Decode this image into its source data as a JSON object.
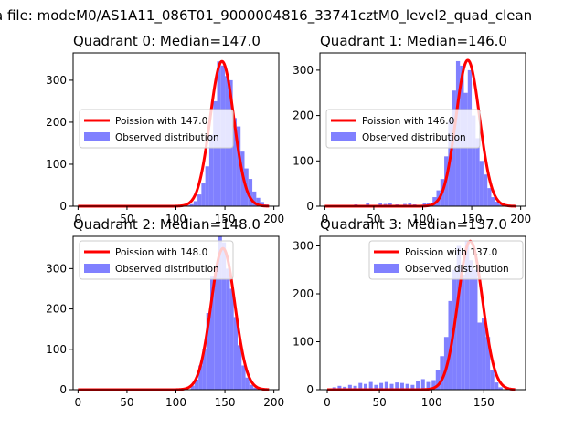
{
  "figure": {
    "suptitle": "a file: modeM0/AS1A11_086T01_9000004816_33741cztM0_level2_quad_clean"
  },
  "colors": {
    "hist": "#8080ff",
    "poisson": "#ff0000",
    "axes": "#000000"
  },
  "chart_data": [
    {
      "type": "bar",
      "title": "Quadrant 0: Median=147.0",
      "legend": [
        "Poission with 147.0",
        "Observed distribution"
      ],
      "legend_position": "center-left",
      "median": 147.0,
      "xlim": [
        -5,
        205
      ],
      "ylim": [
        0,
        365
      ],
      "xticks": [
        "0",
        "50",
        "100",
        "150",
        "200"
      ],
      "yticks": [
        "0",
        "100",
        "200",
        "300"
      ],
      "hist": {
        "bin_start": 110,
        "bin_width": 4,
        "counts": [
          2,
          5,
          12,
          28,
          55,
          95,
          170,
          250,
          345,
          335,
          310,
          300,
          210,
          190,
          130,
          90,
          65,
          35,
          20,
          10,
          4
        ],
        "background": [
          [
            87,
            1
          ],
          [
            91,
            1
          ],
          [
            99,
            1
          ],
          [
            103,
            1
          ]
        ]
      },
      "poisson_peak": 345
    },
    {
      "type": "bar",
      "title": "Quadrant 1: Median=146.0",
      "legend": [
        "Poission with 146.0",
        "Observed distribution"
      ],
      "legend_position": "center-left",
      "median": 146.0,
      "xlim": [
        -5,
        205
      ],
      "ylim": [
        0,
        338
      ],
      "xticks": [
        "0",
        "50",
        "100",
        "150",
        "200"
      ],
      "yticks": [
        "0",
        "100",
        "200",
        "300"
      ],
      "hist": {
        "bin_start": 110,
        "bin_width": 4,
        "counts": [
          20,
          35,
          60,
          110,
          190,
          255,
          320,
          310,
          250,
          300,
          200,
          150,
          100,
          70,
          40,
          20,
          10,
          4
        ],
        "background": [
          [
            8,
            2
          ],
          [
            20,
            3
          ],
          [
            30,
            4
          ],
          [
            42,
            6
          ],
          [
            55,
            7
          ],
          [
            60,
            5
          ],
          [
            65,
            6
          ],
          [
            72,
            4
          ],
          [
            80,
            5
          ],
          [
            85,
            6
          ],
          [
            90,
            4
          ],
          [
            95,
            3
          ],
          [
            100,
            6
          ],
          [
            104,
            8
          ]
        ]
      },
      "poisson_peak": 322
    },
    {
      "type": "bar",
      "title": "Quadrant 2: Median=148.0",
      "legend": [
        "Poission with 148.0",
        "Observed distribution"
      ],
      "legend_position": "top-left",
      "median": 148.0,
      "xlim": [
        -5,
        205
      ],
      "ylim": [
        0,
        380
      ],
      "xticks": [
        "0",
        "50",
        "100",
        "150",
        "200"
      ],
      "yticks": [
        "0",
        "100",
        "200",
        "300"
      ],
      "hist": {
        "bin_start": 115,
        "bin_width": 4,
        "counts": [
          10,
          25,
          60,
          100,
          190,
          280,
          300,
          380,
          365,
          300,
          250,
          180,
          110,
          60,
          30,
          12,
          5
        ],
        "background": []
      },
      "poisson_peak": 350
    },
    {
      "type": "bar",
      "title": "Quadrant 3: Median=137.0",
      "legend": [
        "Poission with 137.0",
        "Observed distribution"
      ],
      "legend_position": "top-right",
      "median": 137.0,
      "xlim": [
        -7,
        190
      ],
      "ylim": [
        0,
        320
      ],
      "xticks": [
        "0",
        "50",
        "100",
        "150"
      ],
      "yticks": [
        "0",
        "100",
        "200",
        "300"
      ],
      "hist": {
        "bin_start": 100,
        "bin_width": 4,
        "counts": [
          20,
          40,
          70,
          110,
          185,
          250,
          300,
          240,
          310,
          270,
          250,
          140,
          150,
          110,
          40,
          15,
          5
        ],
        "background": [
          [
            5,
            5
          ],
          [
            10,
            8
          ],
          [
            15,
            6
          ],
          [
            20,
            10
          ],
          [
            25,
            8
          ],
          [
            30,
            14
          ],
          [
            35,
            12
          ],
          [
            40,
            16
          ],
          [
            45,
            10
          ],
          [
            50,
            14
          ],
          [
            55,
            16
          ],
          [
            60,
            12
          ],
          [
            65,
            15
          ],
          [
            70,
            14
          ],
          [
            75,
            12
          ],
          [
            80,
            10
          ],
          [
            85,
            18
          ],
          [
            90,
            22
          ],
          [
            95,
            16
          ]
        ]
      },
      "poisson_peak": 310
    }
  ]
}
